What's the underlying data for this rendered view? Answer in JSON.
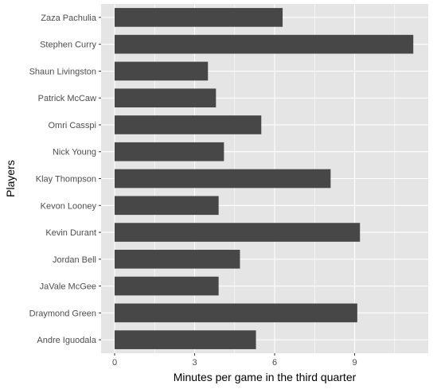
{
  "chart_data": {
    "type": "bar",
    "orientation": "horizontal",
    "categories": [
      "Andre Iguodala",
      "Draymond Green",
      "JaVale McGee",
      "Jordan Bell",
      "Kevin Durant",
      "Kevon Looney",
      "Klay Thompson",
      "Nick Young",
      "Omri Casspi",
      "Patrick McCaw",
      "Shaun Livingston",
      "Stephen Curry",
      "Zaza Pachulia"
    ],
    "values": [
      5.3,
      9.1,
      3.9,
      4.7,
      9.2,
      3.9,
      8.1,
      4.1,
      5.5,
      3.8,
      3.5,
      11.2,
      6.3
    ],
    "title": "",
    "xlabel": "Minutes per game in the third quarter",
    "ylabel": "Players",
    "xlim": [
      0,
      11.76
    ],
    "x_ticks": [
      0,
      3,
      6,
      9
    ],
    "x_tick_labels": [
      "0",
      "3",
      "6",
      "9"
    ],
    "grid": true,
    "legend": "none",
    "colors": {
      "bar": "#474747",
      "panel_background": "#e5e5e5",
      "grid": "#ffffff",
      "tick_text": "#4d4d4d",
      "tick_mark": "#333333",
      "axis_title": "#000000"
    }
  }
}
